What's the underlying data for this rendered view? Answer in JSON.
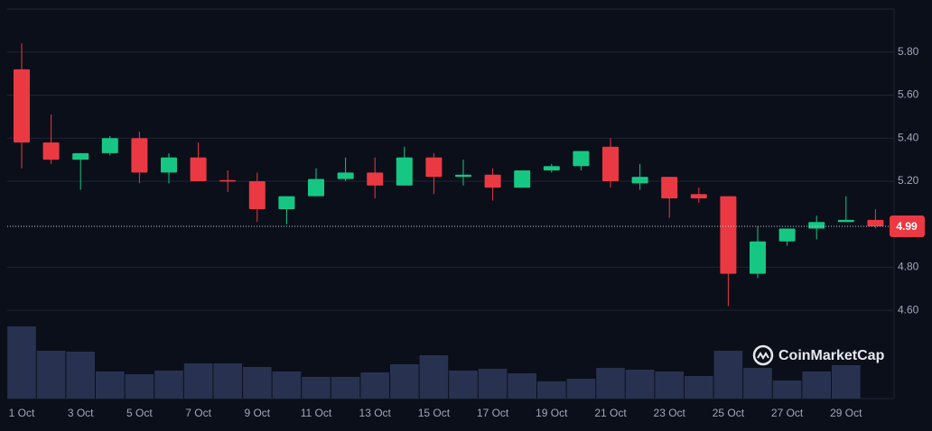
{
  "chart_data": {
    "type": "candlestick",
    "categories": [
      "1 Oct",
      null,
      "3 Oct",
      null,
      "5 Oct",
      null,
      "7 Oct",
      null,
      "9 Oct",
      null,
      "11 Oct",
      null,
      "13 Oct",
      null,
      "15 Oct",
      null,
      "17 Oct",
      null,
      "19 Oct",
      null,
      "21 Oct",
      null,
      "23 Oct",
      null,
      "25 Oct",
      null,
      "27 Oct",
      null,
      "29 Oct",
      null
    ],
    "open": [
      5.72,
      5.38,
      5.3,
      5.33,
      5.4,
      5.24,
      5.31,
      5.205,
      5.2,
      5.07,
      5.13,
      5.21,
      5.24,
      5.18,
      5.31,
      5.22,
      5.23,
      5.17,
      5.25,
      5.27,
      5.36,
      5.19,
      5.22,
      5.14,
      5.13,
      4.77,
      4.92,
      4.98,
      5.01,
      5.02
    ],
    "high": [
      5.84,
      5.51,
      5.33,
      5.41,
      5.43,
      5.33,
      5.38,
      5.25,
      5.24,
      5.13,
      5.26,
      5.31,
      5.31,
      5.36,
      5.33,
      5.3,
      5.26,
      5.25,
      5.28,
      5.34,
      5.4,
      5.28,
      5.22,
      5.17,
      5.13,
      4.99,
      4.98,
      5.04,
      5.13,
      5.07
    ],
    "low": [
      5.26,
      5.28,
      5.16,
      5.32,
      5.19,
      5.19,
      5.2,
      5.15,
      5.01,
      5.0,
      5.13,
      5.2,
      5.12,
      5.18,
      5.14,
      5.18,
      5.11,
      5.17,
      5.24,
      5.25,
      5.17,
      5.16,
      5.03,
      5.1,
      4.62,
      4.75,
      4.9,
      4.93,
      5.01,
      4.98
    ],
    "close": [
      5.38,
      5.3,
      5.33,
      5.4,
      5.24,
      5.31,
      5.2,
      5.198,
      5.07,
      5.13,
      5.21,
      5.24,
      5.18,
      5.31,
      5.22,
      5.23,
      5.17,
      5.25,
      5.27,
      5.34,
      5.2,
      5.22,
      5.12,
      5.12,
      4.77,
      4.92,
      4.98,
      5.01,
      5.02,
      4.99
    ],
    "volume": [
      80,
      53,
      52,
      30,
      27,
      31,
      39,
      39,
      35,
      30,
      24,
      24,
      29,
      38,
      48,
      31,
      33,
      28,
      19,
      22,
      34,
      32,
      30,
      25,
      53,
      34,
      20,
      30,
      37,
      null
    ],
    "up_color": "#16c784",
    "down_color": "#ea3943",
    "volume_color": "#283250",
    "ylim": [
      4.19,
      6.0
    ],
    "yticks": [
      {
        "value": 4.6,
        "label": "4.60"
      },
      {
        "value": 4.8,
        "label": "4.80"
      },
      {
        "value": 5.2,
        "label": "5.20"
      },
      {
        "value": 5.4,
        "label": "5.40"
      },
      {
        "value": 5.6,
        "label": "5.60"
      },
      {
        "value": 5.8,
        "label": "5.80"
      }
    ],
    "grid": true,
    "current_price": 4.99,
    "watermark": "CoinMarketCap"
  }
}
